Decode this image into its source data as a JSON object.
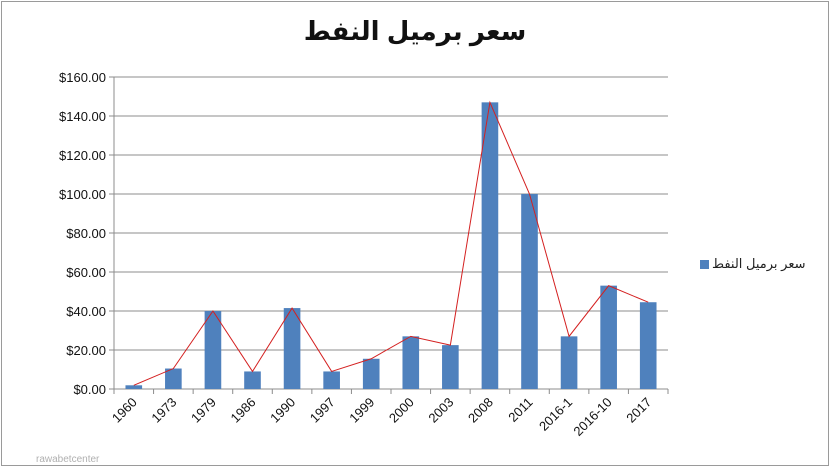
{
  "chart_data": {
    "type": "bar",
    "title": "سعر برميل النفط",
    "categories": [
      "1960",
      "1973",
      "1979",
      "1986",
      "1990",
      "1997",
      "1999",
      "2000",
      "2003",
      "2008",
      "2011",
      "2016-1",
      "2016-10",
      "2017"
    ],
    "series": [
      {
        "name": "سعر برميل النفط",
        "values": [
          1.9,
          10.5,
          40,
          9,
          41.5,
          9,
          15.5,
          27,
          22.5,
          147,
          100,
          27,
          53,
          44.5
        ],
        "color": "#4f81bd"
      }
    ],
    "overlay_line": {
      "values": [
        1.9,
        10.5,
        40,
        9,
        41.5,
        9,
        15.5,
        27,
        22.5,
        147,
        100,
        27,
        53,
        44.5
      ],
      "color": "#d42020"
    },
    "y_ticks": [
      "$0.00",
      "$20.00",
      "$40.00",
      "$60.00",
      "$80.00",
      "$100.00",
      "$120.00",
      "$140.00",
      "$160.00"
    ],
    "ylim": [
      0,
      160
    ],
    "grid": true,
    "legend_position": "right"
  },
  "watermark": "rawabetcenter"
}
